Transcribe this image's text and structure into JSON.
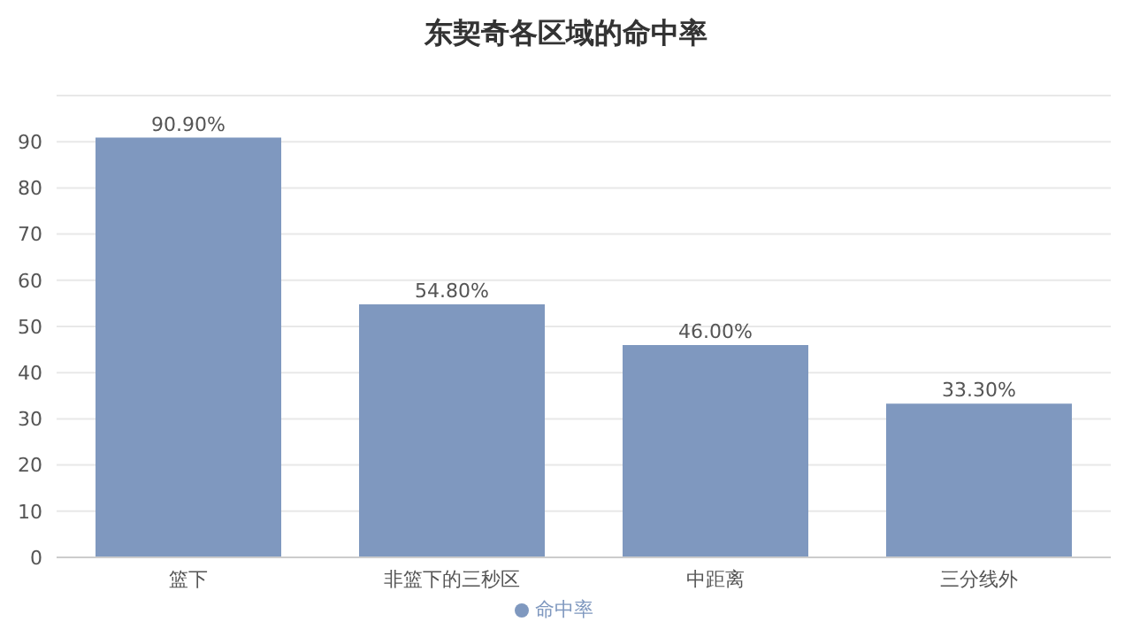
{
  "chart_data": {
    "type": "bar",
    "title": "东契奇各区域的命中率",
    "categories": [
      "篮下",
      "非篮下的三秒区",
      "中距离",
      "三分线外"
    ],
    "series": [
      {
        "name": "命中率",
        "color": "#7f98bf",
        "values": [
          90.9,
          54.8,
          46.0,
          33.3
        ],
        "value_labels": [
          "90.90%",
          "54.80%",
          "46.00%",
          "33.30%"
        ]
      }
    ],
    "ylim": [
      0,
      100
    ],
    "yticks": [
      0,
      10,
      20,
      30,
      40,
      50,
      60,
      70,
      80,
      90
    ],
    "grid": "y",
    "legend": "bottom"
  }
}
